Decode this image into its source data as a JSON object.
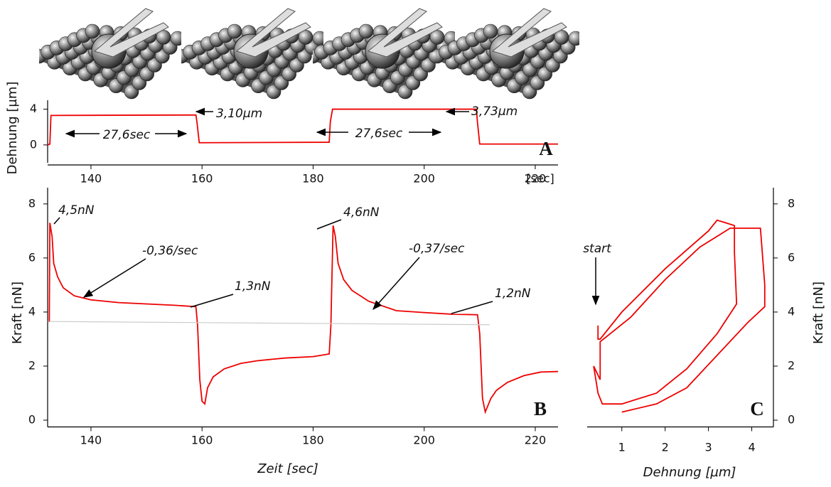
{
  "chart_data": [
    {
      "type": "line",
      "panel_label": "A",
      "y_label": "Dehnung [µm]",
      "x_label": "[sec]",
      "xlim": [
        132.2,
        224.1
      ],
      "ylim": [
        -2,
        5
      ],
      "xticks": [
        140,
        160,
        180,
        200,
        220
      ],
      "yticks": [
        0,
        4
      ],
      "series": [
        {
          "color": "#ee0000",
          "x": [
            132.2,
            132.6,
            132.8,
            158.9,
            159.1,
            159.5,
            182.9,
            183.1,
            183.5,
            209.4,
            209.6,
            210,
            224.1
          ],
          "values": [
            0,
            0.1,
            3.3,
            3.35,
            2.5,
            0.25,
            0.3,
            2.6,
            4.0,
            4.0,
            2.5,
            0.1,
            0.1
          ]
        }
      ],
      "annotations": [
        "3,10µm",
        "3,73µm",
        "27,6sec",
        "27,6sec"
      ]
    },
    {
      "type": "line",
      "panel_label": "B",
      "y_label": "Kraft [nN]",
      "x_label": "Zeit [sec]",
      "xlim": [
        132.2,
        224.1
      ],
      "ylim": [
        -0.25,
        8.6
      ],
      "xticks": [
        140,
        160,
        180,
        200,
        220
      ],
      "yticks": [
        0,
        2,
        4,
        6,
        8
      ],
      "series": [
        {
          "color": "#ee0000",
          "x": [
            132.2,
            132.5,
            132.6,
            133,
            133.3,
            134,
            135,
            137,
            140,
            145,
            150,
            155,
            158.9,
            159.2,
            159.6,
            160,
            160.5,
            161,
            162,
            164,
            167,
            170,
            175,
            180,
            182.9,
            183.2,
            183.6,
            184,
            184.5,
            185.5,
            187,
            190,
            195,
            200,
            205,
            209.6,
            210,
            210.5,
            211,
            212,
            213,
            215,
            218,
            221,
            224.1
          ],
          "values": [
            3.65,
            3.65,
            7.3,
            6.8,
            5.8,
            5.3,
            4.9,
            4.6,
            4.45,
            4.35,
            4.3,
            4.25,
            4.2,
            3.5,
            1.5,
            0.7,
            0.6,
            1.2,
            1.6,
            1.9,
            2.1,
            2.2,
            2.3,
            2.35,
            2.45,
            3.5,
            7.2,
            6.8,
            5.8,
            5.2,
            4.8,
            4.4,
            4.05,
            3.98,
            3.92,
            3.9,
            3.2,
            0.8,
            0.3,
            0.8,
            1.1,
            1.4,
            1.65,
            1.78,
            1.8
          ]
        },
        {
          "color": "#cccccc",
          "x": [
            132.2,
            211.8
          ],
          "values": [
            3.65,
            3.53
          ]
        }
      ],
      "annotations": [
        "4,5nN",
        "-0,36/sec",
        "1,3nN",
        "4,6nN",
        "-0,37/sec",
        "1,2nN"
      ]
    },
    {
      "type": "line",
      "panel_label": "C",
      "y_label": "Kraft [nN]",
      "x_label": "Dehnung [µm]",
      "xlim": [
        0.2,
        4.5
      ],
      "ylim": [
        -0.25,
        8.6
      ],
      "xticks": [
        1,
        2,
        3,
        4
      ],
      "yticks": [
        0,
        2,
        4,
        6,
        8
      ],
      "series": [
        {
          "color": "#ee0000",
          "x": [
            0.45,
            0.45,
            0.5,
            1.0,
            2.0,
            3.0,
            3.2,
            3.6,
            3.6,
            3.65,
            3.2,
            2.5,
            1.8,
            1.0,
            0.55,
            0.45,
            0.35,
            0.5,
            0.5,
            1.2,
            2.0,
            2.8,
            3.5,
            4.2,
            4.3,
            4.3,
            3.9,
            3.2,
            2.5,
            1.8,
            1.0
          ],
          "values": [
            3.5,
            3.0,
            3.0,
            4.0,
            5.6,
            7.0,
            7.4,
            7.2,
            6.2,
            4.3,
            3.2,
            1.9,
            1.0,
            0.6,
            0.6,
            1.0,
            2.0,
            1.5,
            2.9,
            3.8,
            5.2,
            6.4,
            7.1,
            7.1,
            5.0,
            4.2,
            3.6,
            2.4,
            1.2,
            0.6,
            0.3
          ]
        }
      ],
      "annotations": [
        "start"
      ]
    }
  ]
}
